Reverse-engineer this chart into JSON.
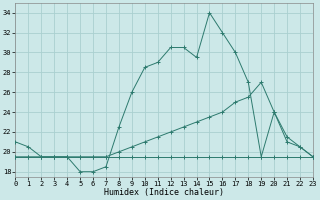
{
  "xlabel": "Humidex (Indice chaleur)",
  "background_color": "#cce8e8",
  "grid_color": "#aad0d0",
  "line_color": "#2d7a6e",
  "x_ticks": [
    0,
    1,
    2,
    3,
    4,
    5,
    6,
    7,
    8,
    9,
    10,
    11,
    12,
    13,
    14,
    15,
    16,
    17,
    18,
    19,
    20,
    21,
    22,
    23
  ],
  "y_ticks": [
    18,
    20,
    22,
    24,
    26,
    28,
    30,
    32,
    34
  ],
  "xlim": [
    0,
    23
  ],
  "ylim": [
    17.5,
    35.0
  ],
  "series1_x": [
    0,
    1,
    2,
    3,
    4,
    5,
    6,
    7,
    8,
    9,
    10,
    11,
    12,
    13,
    14,
    15,
    16,
    17,
    18,
    19,
    20,
    21,
    22,
    23
  ],
  "series1_y": [
    21.0,
    20.5,
    19.5,
    19.5,
    19.5,
    18.0,
    18.0,
    18.5,
    22.5,
    26.0,
    28.5,
    29.0,
    30.5,
    30.5,
    29.5,
    34.0,
    32.0,
    30.0,
    27.0,
    19.5,
    24.0,
    21.0,
    20.5,
    19.5
  ],
  "series2_x": [
    0,
    1,
    2,
    3,
    4,
    5,
    6,
    7,
    8,
    9,
    10,
    11,
    12,
    13,
    14,
    15,
    16,
    17,
    18,
    19,
    20,
    21,
    22,
    23
  ],
  "series2_y": [
    19.5,
    19.5,
    19.5,
    19.5,
    19.5,
    19.5,
    19.5,
    19.5,
    19.5,
    19.5,
    19.5,
    19.5,
    19.5,
    19.5,
    19.5,
    19.5,
    19.5,
    19.5,
    19.5,
    19.5,
    19.5,
    19.5,
    19.5,
    19.5
  ],
  "series3_x": [
    0,
    1,
    2,
    3,
    4,
    5,
    6,
    7,
    8,
    9,
    10,
    11,
    12,
    13,
    14,
    15,
    16,
    17,
    18,
    19,
    20,
    21,
    22,
    23
  ],
  "series3_y": [
    19.5,
    19.5,
    19.5,
    19.5,
    19.5,
    19.5,
    19.5,
    19.5,
    20.0,
    20.5,
    21.0,
    21.5,
    22.0,
    22.5,
    23.0,
    23.5,
    24.0,
    25.0,
    25.5,
    27.0,
    24.0,
    21.5,
    20.5,
    19.5
  ],
  "tick_fontsize": 5,
  "xlabel_fontsize": 6
}
